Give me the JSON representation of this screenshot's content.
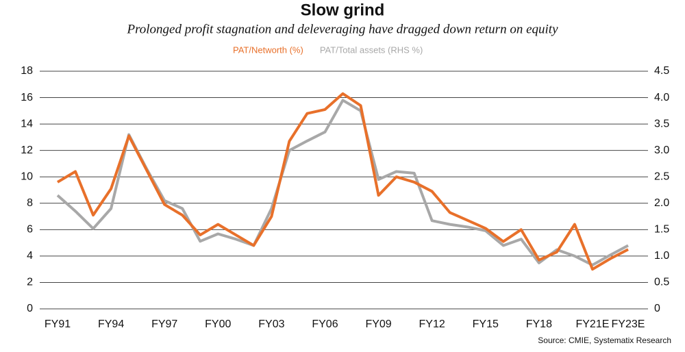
{
  "chart_data": {
    "type": "line",
    "title": "Slow grind",
    "subtitle": "Prolonged profit stagnation and deleveraging have dragged down return on equity",
    "source": "Source: CMIE, Systematix Research",
    "categories": [
      "FY91",
      null,
      null,
      "FY94",
      null,
      null,
      "FY97",
      null,
      null,
      "FY00",
      null,
      null,
      "FY03",
      null,
      null,
      "FY06",
      null,
      null,
      "FY09",
      null,
      null,
      "FY12",
      null,
      null,
      "FY15",
      null,
      null,
      "FY18",
      null,
      null,
      "FY21E",
      null,
      "FY23E"
    ],
    "series": [
      {
        "name": "PAT/Networth (%)",
        "color": "#e8702a",
        "values": [
          9.6,
          10.4,
          7.1,
          9.1,
          13.1,
          10.5,
          7.9,
          7.1,
          5.6,
          6.4,
          5.6,
          4.8,
          7.0,
          12.7,
          14.8,
          15.1,
          16.3,
          15.4,
          8.6,
          10.0,
          9.6,
          8.9,
          7.3,
          6.7,
          6.1,
          5.1,
          6.0,
          3.7,
          4.3,
          6.4,
          3.0,
          3.8,
          4.5
        ]
      },
      {
        "name": "PAT/Total assets (RHS %)",
        "color": "#a8a8a8",
        "axis": "y2",
        "values": [
          2.15,
          1.85,
          1.52,
          1.9,
          3.3,
          2.65,
          2.05,
          1.9,
          1.28,
          1.42,
          1.32,
          1.2,
          1.9,
          3.0,
          3.18,
          3.35,
          3.95,
          3.75,
          2.45,
          2.6,
          2.57,
          1.67,
          1.6,
          1.55,
          1.48,
          1.2,
          1.32,
          0.87,
          1.12,
          1.0,
          0.83,
          1.02,
          1.2
        ]
      }
    ],
    "ylim": [
      0,
      18
    ],
    "yticks": [
      0,
      2,
      4,
      6,
      8,
      10,
      12,
      14,
      16,
      18
    ],
    "y2lim": [
      0,
      4.5
    ],
    "y2ticks": [
      0,
      0.5,
      {
        "value": 1,
        "label": "1.0"
      },
      1.5,
      {
        "value": 2,
        "label": "2.0"
      },
      2.5,
      {
        "value": 3,
        "label": "3.0"
      },
      3.5,
      {
        "value": 4,
        "label": "4.0"
      },
      4.5
    ],
    "grid": true,
    "legend": "top"
  }
}
